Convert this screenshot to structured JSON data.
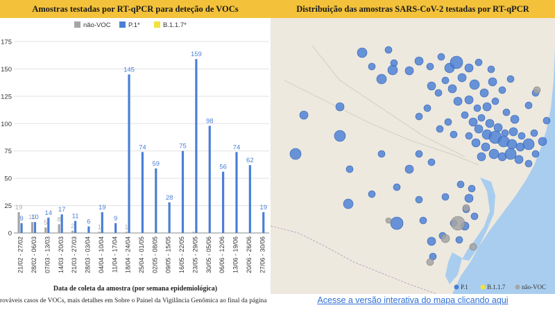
{
  "left_panel": {
    "title": "Amostras testadas por RT-qPCR para deteção de VOCs",
    "caption": "rováveis casos de VOCs, mais detalhes em Sobre o Painel da Vigilância Genômica ao final da página"
  },
  "right_panel": {
    "title": "Distribuição das amostras SARS-CoV-2 testadas por RT-qPCR",
    "link_text": "Acesse a versão interativa do mapa clicando aqui",
    "legend": [
      {
        "label": "P.1",
        "color": "#4a7fd6"
      },
      {
        "label": "B.1.1.7",
        "color": "#f2e23a"
      },
      {
        "label": "não-VOC",
        "color": "#a5a5a5"
      }
    ]
  },
  "chart_data": {
    "type": "bar",
    "xlabel": "Data de coleta da amostra (por semana epidemiológica)",
    "ylabel": "",
    "ylim": [
      0,
      175
    ],
    "yticks": [
      0,
      25,
      50,
      75,
      100,
      125,
      150,
      175
    ],
    "grid": true,
    "legend_position": "top",
    "categories": [
      "21/02 - 27/02",
      "28/02 - 06/03",
      "07/03 - 13/03",
      "14/03 - 20/03",
      "21/03 - 27/03",
      "28/03 - 03/04",
      "04/04 - 10/04",
      "11/04 - 17/04",
      "18/04 - 24/04",
      "25/04 - 01/05",
      "02/05 - 08/05",
      "09/05 - 15/05",
      "16/05 - 22/05",
      "23/05 - 29/05",
      "30/05 - 05/06",
      "06/06 - 12/06",
      "13/06 - 19/06",
      "20/06 - 26/06",
      "27/06 - 30/06"
    ],
    "series": [
      {
        "name": "não-VOC",
        "color": "#a5a5a5",
        "values": [
          19,
          10,
          5,
          8,
          2,
          0,
          1,
          0,
          1,
          0,
          0,
          0,
          0,
          1,
          0,
          0,
          0,
          0,
          0
        ],
        "labels": [
          "19",
          "10",
          "5",
          "8",
          "2",
          "",
          "1",
          "",
          "1",
          "",
          "",
          "",
          "",
          "",
          "",
          "",
          "",
          "",
          ""
        ]
      },
      {
        "name": "P.1*",
        "color": "#4a7fd6",
        "values": [
          9,
          10,
          14,
          17,
          11,
          6,
          19,
          9,
          145,
          74,
          59,
          28,
          75,
          159,
          98,
          56,
          74,
          62,
          19
        ],
        "labels": [
          "9",
          "10",
          "14",
          "17",
          "11",
          "6",
          "19",
          "9",
          "145",
          "74",
          "59",
          "28",
          "75",
          "159",
          "98",
          "56",
          "74",
          "62",
          "19"
        ]
      },
      {
        "name": "B.1.1.7*",
        "color": "#f2e23a",
        "values": [
          0,
          0,
          0,
          0,
          0,
          0,
          0,
          0,
          0,
          0,
          0,
          0,
          0,
          0,
          0,
          0,
          0,
          0,
          0
        ],
        "labels": [
          "",
          "",
          "",
          "",
          "",
          "",
          "",
          "",
          "",
          "",
          "",
          "",
          "",
          "",
          "",
          "",
          "",
          "",
          ""
        ]
      }
    ]
  }
}
